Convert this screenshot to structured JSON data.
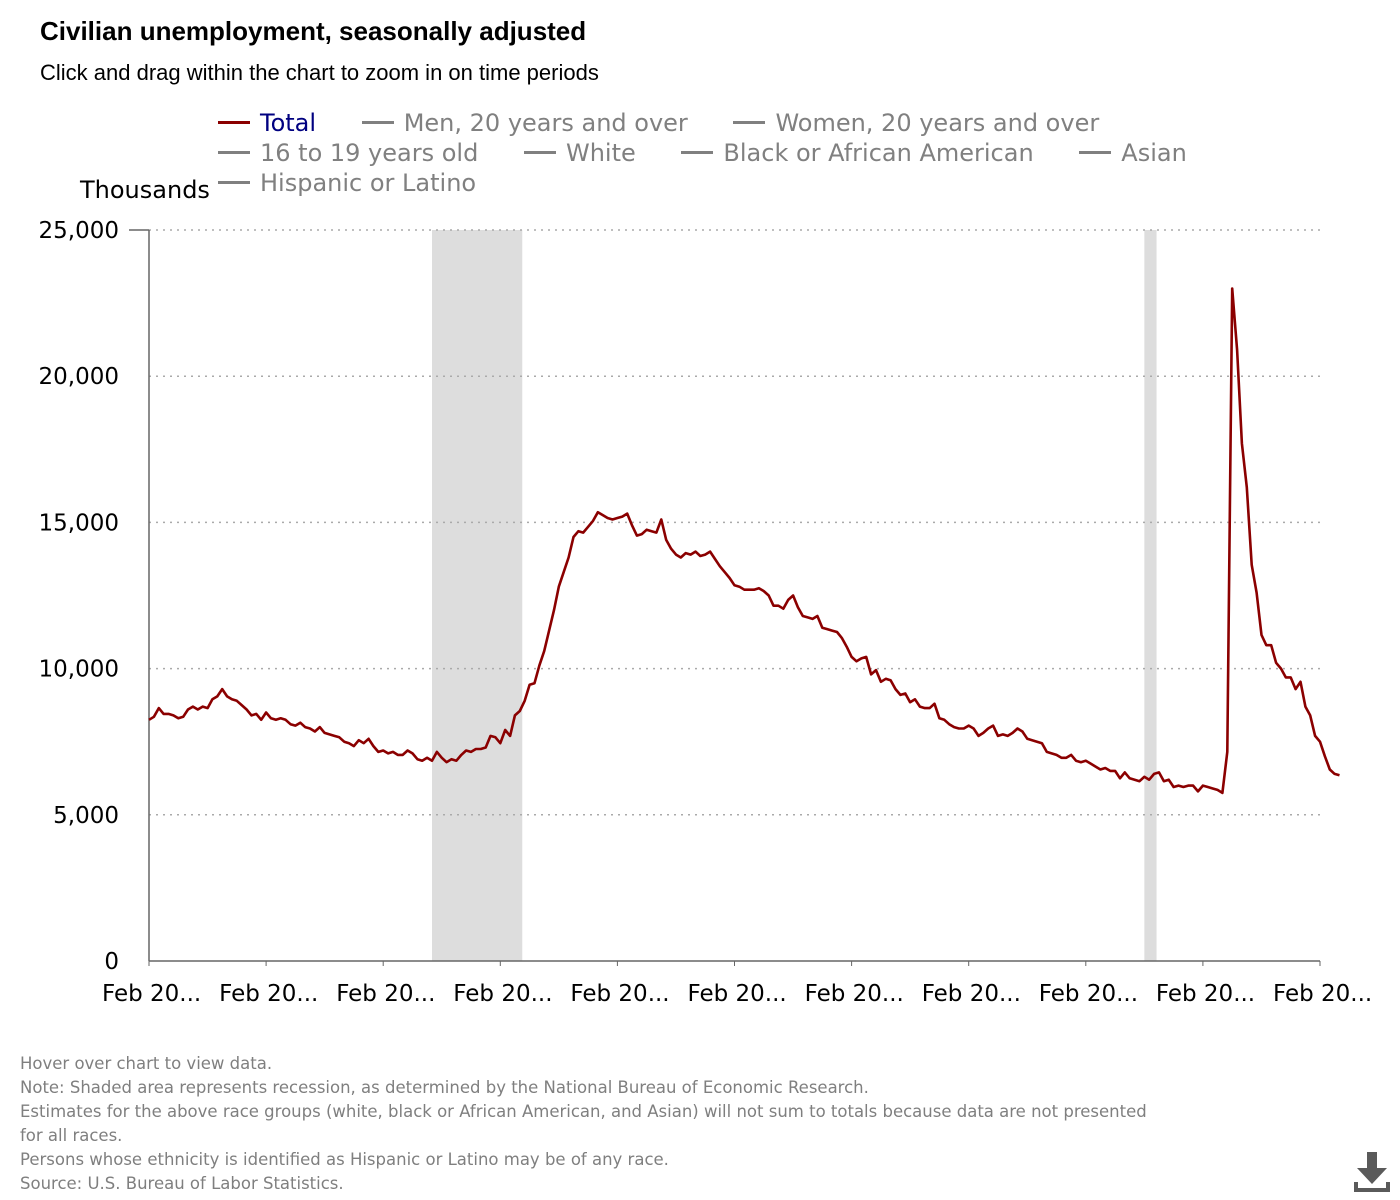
{
  "chart_title": "Civilian unemployment, seasonally adjusted",
  "chart_subtitle": "Click and drag within the chart to zoom in on time periods",
  "legend": [
    {
      "label": "Total",
      "active": true
    },
    {
      "label": "Men, 20 years and over",
      "active": false
    },
    {
      "label": "Women, 20 years and over",
      "active": false
    },
    {
      "label": "16 to 19 years old",
      "active": false
    },
    {
      "label": "White",
      "active": false
    },
    {
      "label": "Black or African American",
      "active": false
    },
    {
      "label": "Asian",
      "active": false
    },
    {
      "label": "Hispanic or Latino",
      "active": false
    }
  ],
  "y_unit_label": "Thousands",
  "notes": [
    "Hover over chart to view data.",
    "Note: Shaded area represents recession, as determined by the National Bureau of Economic Research.",
    "Estimates for the above race groups (white, black or African American, and Asian) will not sum to totals because data are not presented",
    "for all races.",
    "Persons whose ethnicity is identified as Hispanic or Latino may be of any race.",
    "Source: U.S. Bureau of Labor Statistics."
  ],
  "colors": {
    "total_line": "#8b0000",
    "recession_shade": "#dddddd",
    "gridline": "#aaaaaa",
    "inactive_legend": "#808080",
    "active_legend_text": "#000080",
    "notes_text": "#7f7f7f"
  },
  "icons": {
    "download": "download-icon"
  },
  "chart_data": {
    "type": "line",
    "title": "Civilian unemployment, seasonally adjusted",
    "ylabel": "Thousands",
    "ylim": [
      0,
      25000
    ],
    "yticks": [
      0,
      5000,
      10000,
      15000,
      20000,
      25000
    ],
    "ytick_labels": [
      "0",
      "5,000",
      "10,000",
      "15,000",
      "20,000",
      "25,000"
    ],
    "x_start": "2003-02",
    "x_end": "2023-02",
    "xtick_dates": [
      "2003-02",
      "2005-02",
      "2007-02",
      "2009-02",
      "2011-02",
      "2013-02",
      "2015-02",
      "2017-02",
      "2019-02",
      "2021-02",
      "2023-02"
    ],
    "xtick_labels": [
      "Feb 20...",
      "Feb 20...",
      "Feb 20...",
      "Feb 20...",
      "Feb 20...",
      "Feb 20...",
      "Feb 20...",
      "Feb 20...",
      "Feb 20...",
      "Feb 20...",
      "Feb 20..."
    ],
    "grid": "horizontal dotted",
    "legend_position": "top",
    "recessions": [
      {
        "start": "2007-12",
        "end": "2009-06"
      },
      {
        "start": "2020-02",
        "end": "2020-04"
      }
    ],
    "series": [
      {
        "name": "Total",
        "start": "2003-02",
        "frequency": "monthly",
        "values": [
          8250,
          8350,
          8650,
          8450,
          8450,
          8400,
          8300,
          8350,
          8600,
          8700,
          8600,
          8700,
          8650,
          8950,
          9050,
          9300,
          9050,
          8950,
          8900,
          8750,
          8600,
          8400,
          8450,
          8250,
          8500,
          8300,
          8250,
          8300,
          8250,
          8100,
          8050,
          8150,
          8000,
          7950,
          7850,
          8000,
          7800,
          7750,
          7700,
          7650,
          7500,
          7450,
          7350,
          7550,
          7450,
          7600,
          7350,
          7150,
          7200,
          7100,
          7150,
          7050,
          7050,
          7200,
          7100,
          6900,
          6850,
          6950,
          6850,
          7150,
          6950,
          6800,
          6900,
          6850,
          7050,
          7200,
          7150,
          7250,
          7250,
          7300,
          7700,
          7650,
          7450,
          7900,
          7700,
          8400,
          8550,
          8900,
          9450,
          9500,
          10100,
          10600,
          11300,
          12000,
          12800,
          13300,
          13800,
          14500,
          14700,
          14650,
          14850,
          15050,
          15350,
          15250,
          15150,
          15100,
          15150,
          15200,
          15300,
          14900,
          14550,
          14600,
          14750,
          14700,
          14650,
          15100,
          14400,
          14100,
          13900,
          13800,
          13950,
          13900,
          14000,
          13850,
          13900,
          14000,
          13750,
          13500,
          13300,
          13100,
          12850,
          12800,
          12700,
          12700,
          12700,
          12750,
          12650,
          12500,
          12150,
          12150,
          12050,
          12350,
          12500,
          12100,
          11800,
          11750,
          11700,
          11800,
          11400,
          11350,
          11300,
          11250,
          11050,
          10750,
          10400,
          10250,
          10350,
          10400,
          9800,
          9950,
          9550,
          9650,
          9600,
          9300,
          9100,
          9150,
          8850,
          8950,
          8700,
          8650,
          8650,
          8800,
          8300,
          8250,
          8100,
          8000,
          7950,
          7950,
          8050,
          7950,
          7700,
          7800,
          7950,
          8050,
          7700,
          7750,
          7700,
          7800,
          7950,
          7850,
          7600,
          7550,
          7500,
          7450,
          7150,
          7100,
          7050,
          6950,
          6950,
          7050,
          6850,
          6800,
          6850,
          6750,
          6650,
          6550,
          6600,
          6500,
          6500,
          6250,
          6450,
          6250,
          6200,
          6150,
          6300,
          6200,
          6400,
          6450,
          6150,
          6200,
          5950,
          6000,
          5950,
          6000,
          6000,
          5800,
          6000,
          5950,
          5900,
          5850,
          5750,
          7150,
          23000,
          20900,
          17700,
          16200,
          13550,
          12600,
          11150,
          10800,
          10800,
          10200,
          10000,
          9700,
          9700,
          9300,
          9550,
          8700,
          8400,
          7700,
          7500,
          7000,
          6550,
          6400,
          6350
        ]
      }
    ]
  }
}
